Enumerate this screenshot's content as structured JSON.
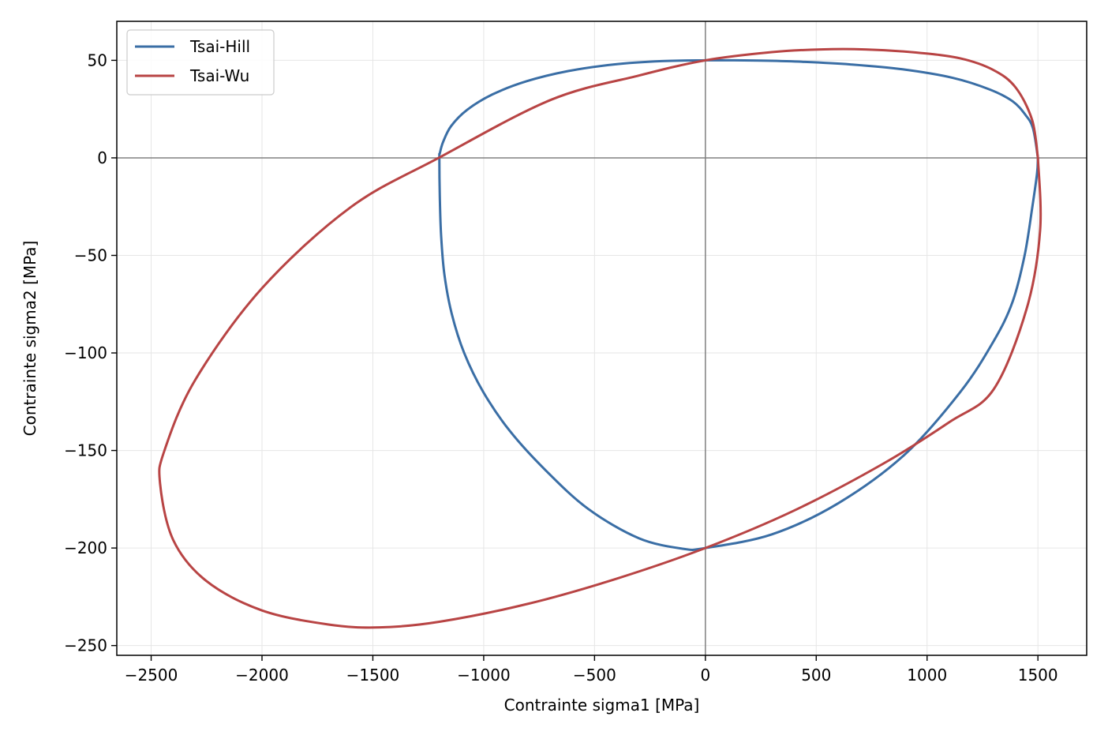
{
  "chart_data": {
    "type": "line",
    "title": "",
    "xlabel": "Contrainte sigma1 [MPa]",
    "ylabel": "Contrainte sigma2 [MPa]",
    "xlim": [
      -2655,
      1720
    ],
    "ylim": [
      -255,
      70
    ],
    "xticks": [
      -2500,
      -2000,
      -1500,
      -1000,
      -500,
      0,
      500,
      1000,
      1500
    ],
    "yticks": [
      -250,
      -200,
      -150,
      -100,
      -50,
      0,
      50
    ],
    "tick_labels": {
      "x": [
        "−2500",
        "−2000",
        "−1500",
        "−1000",
        "−500",
        "0",
        "500",
        "1000",
        "1500"
      ],
      "y": [
        "−250",
        "−200",
        "−150",
        "−100",
        "−50",
        "0",
        "50"
      ]
    },
    "grid": true,
    "zero_lines": true,
    "legend_position": "top-left",
    "series": [
      {
        "name": "Tsai-Hill",
        "color": "#3a6ea5",
        "x": [
          1500,
          1478,
          1444,
          1386,
          1284,
          1117,
          889,
          654,
          449,
          276,
          127,
          0,
          -196,
          -412,
          -619,
          -806,
          -961,
          -1075,
          -1147,
          -1183,
          -1198,
          -1200,
          -1198,
          -1192,
          -1177,
          -1144,
          -1088,
          -1002,
          -882,
          -722,
          -528,
          -300,
          -100,
          0,
          300,
          600,
          900,
          1150,
          1300,
          1385,
          1440,
          1475,
          1496,
          1500
        ],
        "y": [
          0,
          15,
          22,
          29,
          35,
          41,
          45.4,
          47.9,
          49.2,
          49.8,
          50,
          50,
          49.6,
          47.9,
          44.5,
          39.3,
          32.5,
          24.6,
          16.3,
          8.2,
          2.3,
          0,
          -20,
          -40,
          -60,
          -80,
          -100,
          -120,
          -140,
          -160,
          -180,
          -195,
          -200.4,
          -200,
          -193,
          -177,
          -152,
          -120,
          -94,
          -74,
          -50,
          -25,
          -8,
          0
        ]
      },
      {
        "name": "Tsai-Wu",
        "color": "#b84444",
        "x": [
          1500,
          1474,
          1400,
          1300,
          1150,
          950,
          720,
          520,
          300,
          0,
          -300,
          -700,
          -1203,
          -1600,
          -2000,
          -2300,
          -2440,
          -2460,
          -2400,
          -2250,
          -2000,
          -1700,
          -1470,
          -1200,
          -800,
          -400,
          0,
          400,
          800,
          1100,
          1300,
          1450,
          1510,
          1500
        ],
        "y": [
          0,
          19.4,
          36,
          45,
          51,
          54,
          55.6,
          55.6,
          54.2,
          50,
          42.2,
          29.6,
          0,
          -25.3,
          -66.8,
          -113.6,
          -150,
          -166.8,
          -196,
          -217,
          -232,
          -239.2,
          -240.7,
          -237.8,
          -228.6,
          -215.7,
          -200,
          -180.8,
          -156.9,
          -135.5,
          -118.7,
          -77,
          -37,
          0
        ]
      }
    ]
  }
}
